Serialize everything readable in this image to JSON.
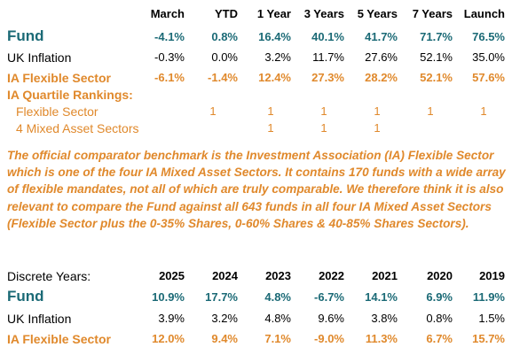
{
  "cumulative": {
    "headers": [
      "March",
      "YTD",
      "1 Year",
      "3 Years",
      "5 Years",
      "7 Years",
      "Launch"
    ],
    "rows": [
      {
        "label": "Fund",
        "values": [
          "-4.1%",
          "0.8%",
          "16.4%",
          "40.1%",
          "41.7%",
          "71.7%",
          "76.5%"
        ]
      },
      {
        "label": "UK Inflation",
        "values": [
          "-0.3%",
          "0.0%",
          "3.2%",
          "11.7%",
          "27.6%",
          "52.1%",
          "35.0%"
        ]
      },
      {
        "label": "IA Flexible Sector",
        "values": [
          "-6.1%",
          "-1.4%",
          "12.4%",
          "27.3%",
          "28.2%",
          "52.1%",
          "57.6%"
        ]
      }
    ]
  },
  "quartile": {
    "title": "IA Quartile Rankings:",
    "rows": [
      {
        "label": "Flexible Sector",
        "values": [
          "",
          "1",
          "1",
          "1",
          "1",
          "1",
          "1"
        ]
      },
      {
        "label": "4 Mixed Asset Sectors",
        "values": [
          "",
          "",
          "1",
          "1",
          "1",
          "",
          ""
        ]
      }
    ]
  },
  "note": "The official comparator benchmark is the Investment Association (IA) Flexible Sector which is one of the four IA Mixed Asset Sectors. It contains 170 funds with a wide array of flexible mandates, not all of which are truly comparable. We therefore think it is also relevant to compare the Fund against all 643 funds in all four IA Mixed Asset Sectors (Flexible Sector plus the 0-35% Shares, 0-60% Shares & 40-85% Shares Sectors).",
  "discrete": {
    "title": "Discrete Years:",
    "headers": [
      "2025",
      "2024",
      "2023",
      "2022",
      "2021",
      "2020",
      "2019"
    ],
    "rows": [
      {
        "label": "Fund",
        "values": [
          "10.9%",
          "17.7%",
          "4.8%",
          "-6.7%",
          "14.1%",
          "6.9%",
          "11.9%"
        ]
      },
      {
        "label": "UK Inflation",
        "values": [
          "3.9%",
          "3.2%",
          "4.8%",
          "9.6%",
          "3.8%",
          "0.8%",
          "1.5%"
        ]
      },
      {
        "label": "IA Flexible Sector",
        "values": [
          "12.0%",
          "9.4%",
          "7.1%",
          "-9.0%",
          "11.3%",
          "6.7%",
          "15.7%"
        ]
      }
    ]
  }
}
